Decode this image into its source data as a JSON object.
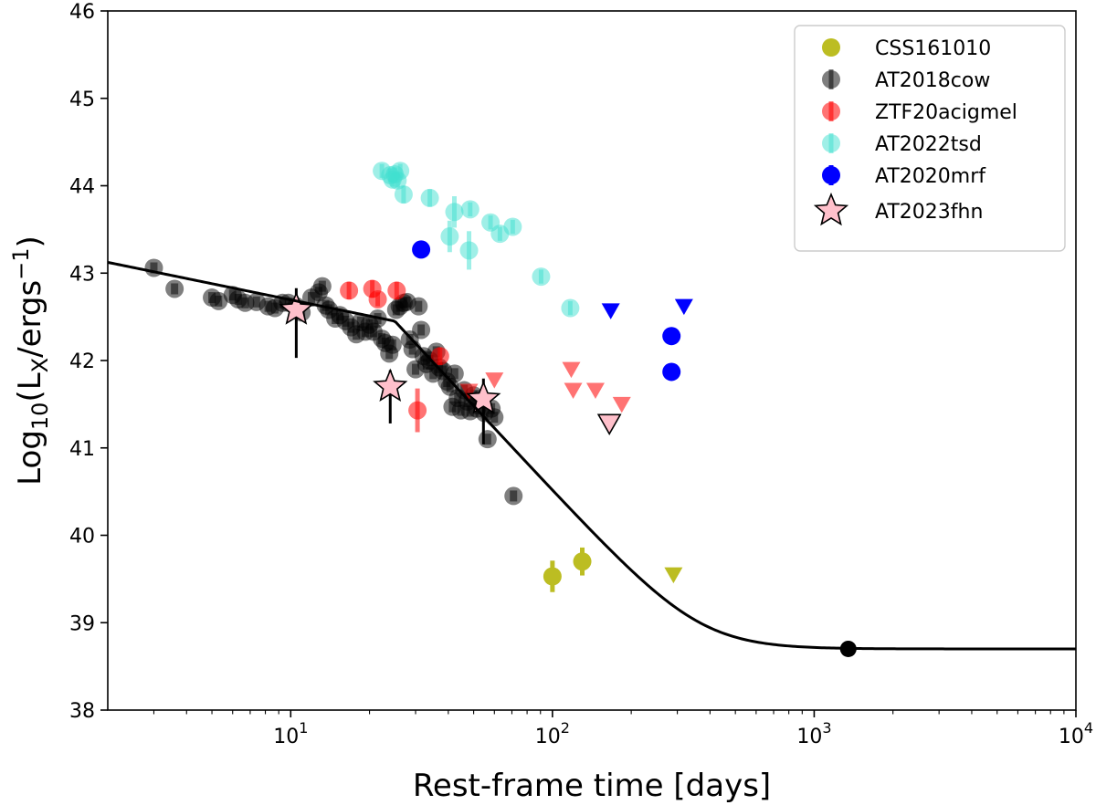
{
  "chart_data": {
    "type": "scatter",
    "title": "",
    "xlabel": "Rest-frame time [days]",
    "ylabel_parts": {
      "prefix": "Log",
      "sub10": "10",
      "open": "(L",
      "subX": "X",
      "mid": "/ergs",
      "sup": "−1",
      "close": ")"
    },
    "xscale": "log",
    "xlim": [
      2,
      10000
    ],
    "ylim": [
      38,
      46
    ],
    "xticks": [
      {
        "value": 10,
        "base": "10",
        "exp": "1"
      },
      {
        "value": 100,
        "base": "10",
        "exp": "2"
      },
      {
        "value": 1000,
        "base": "10",
        "exp": "3"
      },
      {
        "value": 10000,
        "base": "10",
        "exp": "4"
      }
    ],
    "yticks": [
      38,
      39,
      40,
      41,
      42,
      43,
      44,
      45,
      46
    ],
    "legend_position": "top-right",
    "series": [
      {
        "name": "CSS161010",
        "color": "#bcbd22",
        "marker": "circle",
        "points": [
          [
            100,
            39.53,
            0.18
          ],
          [
            130,
            39.7,
            0.16
          ]
        ],
        "upper_limits": [
          [
            290,
            39.55
          ]
        ]
      },
      {
        "name": "AT2018cow",
        "color": "#000000",
        "alpha": 0.5,
        "marker": "circle",
        "points": [
          [
            3.0,
            43.06
          ],
          [
            3.6,
            42.82
          ],
          [
            5.0,
            42.72
          ],
          [
            5.3,
            42.68
          ],
          [
            6.0,
            42.75
          ],
          [
            6.3,
            42.7
          ],
          [
            6.7,
            42.66
          ],
          [
            7.4,
            42.67
          ],
          [
            8.2,
            42.62
          ],
          [
            8.7,
            42.6
          ],
          [
            9.3,
            42.66
          ],
          [
            9.8,
            42.66
          ],
          [
            10.5,
            42.62
          ],
          [
            11.0,
            42.55
          ],
          [
            12.0,
            42.72
          ],
          [
            12.8,
            42.78
          ],
          [
            13.2,
            42.85
          ],
          [
            13.6,
            42.63
          ],
          [
            14.0,
            42.58
          ],
          [
            14.8,
            42.48
          ],
          [
            15.4,
            42.52
          ],
          [
            16.2,
            42.45
          ],
          [
            17.0,
            42.38
          ],
          [
            17.8,
            42.3
          ],
          [
            18.5,
            42.44
          ],
          [
            19.3,
            42.33
          ],
          [
            20.0,
            42.41
          ],
          [
            20.7,
            42.33
          ],
          [
            21.5,
            42.48
          ],
          [
            22.3,
            42.25
          ],
          [
            23.0,
            42.2
          ],
          [
            23.8,
            42.08
          ],
          [
            24.5,
            42.18
          ],
          [
            25.3,
            42.58
          ],
          [
            26.1,
            42.62
          ],
          [
            27.0,
            42.66
          ],
          [
            27.8,
            42.67
          ],
          [
            28.5,
            42.24
          ],
          [
            29.2,
            42.13
          ],
          [
            30.0,
            41.9
          ],
          [
            30.8,
            42.62
          ],
          [
            31.5,
            42.35
          ],
          [
            32.2,
            42.05
          ],
          [
            33.0,
            41.96
          ],
          [
            34.0,
            42.0
          ],
          [
            35.0,
            41.85
          ],
          [
            36.0,
            42.1
          ],
          [
            37.0,
            41.92
          ],
          [
            38.2,
            41.88
          ],
          [
            39.5,
            41.76
          ],
          [
            40.6,
            41.7
          ],
          [
            41.5,
            41.47
          ],
          [
            42.3,
            41.85
          ],
          [
            43.5,
            41.57
          ],
          [
            44.7,
            41.43
          ],
          [
            46.0,
            41.66
          ],
          [
            47.3,
            41.53
          ],
          [
            48.5,
            41.42
          ],
          [
            50.0,
            41.6
          ],
          [
            51.5,
            41.45
          ],
          [
            53.0,
            41.56
          ],
          [
            55.0,
            41.4
          ],
          [
            56.5,
            41.1
          ],
          [
            58.5,
            41.45
          ],
          [
            60.0,
            41.35
          ],
          [
            71.0,
            40.45
          ]
        ]
      },
      {
        "name": "ZTF20acigmel",
        "color": "#ff0000",
        "alpha": 0.55,
        "marker": "circle",
        "points": [
          [
            16.7,
            42.8,
            0.1
          ],
          [
            20.5,
            42.82,
            0.1
          ],
          [
            21.5,
            42.7,
            0.08
          ],
          [
            25.4,
            42.8,
            0.1
          ],
          [
            30.5,
            41.43,
            0.25
          ],
          [
            37.2,
            42.05,
            0.1
          ]
        ],
        "upper_limits": [
          [
            48,
            41.65
          ],
          [
            60,
            41.78
          ],
          [
            118,
            41.9
          ],
          [
            120,
            41.66
          ],
          [
            146,
            41.66
          ],
          [
            184,
            41.5
          ]
        ]
      },
      {
        "name": "AT2022tsd",
        "color": "#40e0d0",
        "alpha": 0.5,
        "marker": "circle",
        "points": [
          [
            22.3,
            44.17,
            0.08
          ],
          [
            24.0,
            44.12,
            0.08
          ],
          [
            24.5,
            44.07,
            0.08
          ],
          [
            25.0,
            44.13,
            0.08
          ],
          [
            25.6,
            44.06,
            0.08
          ],
          [
            26.2,
            44.17,
            0.08
          ],
          [
            27.0,
            43.9,
            0.1
          ],
          [
            34.0,
            43.86,
            0.1
          ],
          [
            42.2,
            43.7,
            0.18
          ],
          [
            40.5,
            43.42,
            0.18
          ],
          [
            48.0,
            43.26,
            0.22
          ],
          [
            48.5,
            43.73,
            0.08
          ],
          [
            58.0,
            43.58,
            0.08
          ],
          [
            63.0,
            43.45,
            0.08
          ],
          [
            70.5,
            43.53,
            0.08
          ],
          [
            90.5,
            42.96,
            0.08
          ],
          [
            117.0,
            42.6,
            0.08
          ]
        ]
      },
      {
        "name": "AT2020mrf",
        "color": "#0000ff",
        "marker": "circle",
        "points": [
          [
            31.5,
            43.27,
            0.1
          ],
          [
            285,
            42.28,
            0.0
          ],
          [
            285,
            41.87,
            0.0
          ]
        ],
        "upper_limits": [
          [
            167,
            42.57
          ],
          [
            318,
            42.62
          ]
        ]
      },
      {
        "name": "AT2023fhn",
        "color": "#ffc0cb",
        "marker": "star",
        "points": [
          [
            10.5,
            42.58,
            0.55
          ],
          [
            24.0,
            41.7,
            0.42
          ],
          [
            54.5,
            41.56,
            0.52
          ]
        ],
        "upper_limits": [
          [
            165,
            41.28
          ]
        ]
      }
    ],
    "model_curve": {
      "color": "#000000",
      "x_start": 2,
      "break_time": 25,
      "break_lum": 42.45,
      "slope_early": -0.614,
      "slope_late": -3.22,
      "floor": 38.7,
      "x_end": 10000
    },
    "late_point": {
      "x": 1350,
      "y": 38.7,
      "color": "#000000"
    }
  }
}
